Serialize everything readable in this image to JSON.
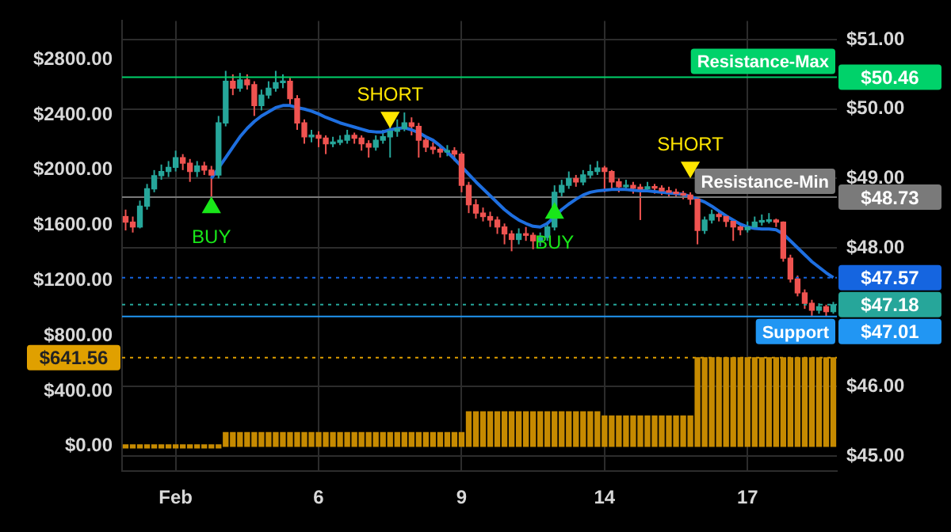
{
  "chart_data": {
    "type": "candlestick",
    "categories": [
      null,
      null,
      null,
      null,
      null,
      null,
      null,
      "Feb",
      null,
      null,
      null,
      null,
      null,
      null,
      null,
      null,
      null,
      null,
      null,
      null,
      null,
      null,
      null,
      null,
      null,
      null,
      null,
      "6",
      null,
      null,
      null,
      null,
      null,
      null,
      null,
      null,
      null,
      null,
      null,
      null,
      null,
      null,
      null,
      null,
      null,
      null,
      null,
      "9",
      null,
      null,
      null,
      null,
      null,
      null,
      null,
      null,
      null,
      null,
      null,
      null,
      null,
      null,
      null,
      null,
      null,
      null,
      null,
      "14",
      null,
      null,
      null,
      null,
      null,
      null,
      null,
      null,
      null,
      null,
      null,
      null,
      null,
      null,
      null,
      null,
      null,
      null,
      null,
      "17",
      null,
      null,
      null,
      null,
      null,
      null,
      null,
      null,
      null,
      null,
      null,
      null
    ],
    "series": [
      {
        "axis": "y2",
        "ohlc": [
          [
            48.45,
            48.55,
            48.25,
            48.37
          ],
          [
            48.37,
            48.45,
            48.22,
            48.3
          ],
          [
            48.3,
            48.68,
            48.28,
            48.6
          ],
          [
            48.6,
            48.92,
            48.55,
            48.85
          ],
          [
            48.85,
            49.12,
            48.8,
            49.04
          ],
          [
            49.04,
            49.2,
            48.98,
            49.1
          ],
          [
            49.1,
            49.25,
            49.02,
            49.16
          ],
          [
            49.16,
            49.4,
            49.1,
            49.3
          ],
          [
            49.3,
            49.35,
            49.12,
            49.22
          ],
          [
            49.22,
            49.28,
            48.95,
            49.1
          ],
          [
            49.1,
            49.25,
            49.02,
            49.18
          ],
          [
            49.18,
            49.24,
            49.05,
            49.12
          ],
          [
            49.12,
            49.18,
            48.7,
            49.05
          ],
          [
            49.05,
            49.9,
            49.0,
            49.8
          ],
          [
            49.8,
            50.55,
            49.75,
            50.4
          ],
          [
            50.4,
            50.5,
            50.2,
            50.3
          ],
          [
            50.3,
            50.52,
            50.25,
            50.42
          ],
          [
            50.42,
            50.5,
            50.28,
            50.35
          ],
          [
            50.35,
            50.4,
            49.9,
            50.05
          ],
          [
            50.05,
            50.28,
            49.98,
            50.2
          ],
          [
            50.2,
            50.4,
            50.15,
            50.3
          ],
          [
            50.3,
            50.55,
            50.25,
            50.38
          ],
          [
            50.38,
            50.5,
            50.3,
            50.4
          ],
          [
            50.4,
            50.45,
            50.05,
            50.15
          ],
          [
            50.15,
            50.2,
            49.7,
            49.8
          ],
          [
            49.8,
            49.85,
            49.5,
            49.6
          ],
          [
            49.6,
            49.7,
            49.52,
            49.62
          ],
          [
            49.62,
            49.68,
            49.45,
            49.58
          ],
          [
            49.58,
            49.62,
            49.35,
            49.5
          ],
          [
            49.5,
            49.6,
            49.45,
            49.52
          ],
          [
            49.52,
            49.62,
            49.48,
            49.55
          ],
          [
            49.55,
            49.7,
            49.5,
            49.62
          ],
          [
            49.62,
            49.66,
            49.5,
            49.58
          ],
          [
            49.58,
            49.62,
            49.4,
            49.5
          ],
          [
            49.5,
            49.55,
            49.3,
            49.45
          ],
          [
            49.45,
            49.62,
            49.4,
            49.55
          ],
          [
            49.55,
            49.7,
            49.5,
            49.6
          ],
          [
            49.6,
            49.75,
            49.3,
            49.68
          ],
          [
            49.68,
            49.85,
            49.6,
            49.72
          ],
          [
            49.72,
            49.95,
            49.68,
            49.8
          ],
          [
            49.8,
            49.88,
            49.62,
            49.75
          ],
          [
            49.75,
            49.8,
            49.3,
            49.55
          ],
          [
            49.55,
            49.6,
            49.38,
            49.45
          ],
          [
            49.45,
            49.52,
            49.35,
            49.42
          ],
          [
            49.42,
            49.48,
            49.3,
            49.38
          ],
          [
            49.38,
            49.48,
            49.32,
            49.4
          ],
          [
            49.4,
            49.45,
            49.25,
            49.35
          ],
          [
            49.35,
            49.38,
            48.8,
            48.9
          ],
          [
            48.9,
            48.95,
            48.5,
            48.62
          ],
          [
            48.62,
            48.7,
            48.42,
            48.5
          ],
          [
            48.5,
            48.58,
            48.38,
            48.45
          ],
          [
            48.45,
            48.52,
            48.3,
            48.4
          ],
          [
            48.4,
            48.45,
            48.2,
            48.3
          ],
          [
            48.3,
            48.35,
            48.05,
            48.2
          ],
          [
            48.2,
            48.25,
            47.95,
            48.12
          ],
          [
            48.12,
            48.28,
            48.05,
            48.2
          ],
          [
            48.2,
            48.3,
            48.1,
            48.18
          ],
          [
            48.18,
            48.22,
            47.98,
            48.1
          ],
          [
            48.1,
            48.22,
            48.02,
            48.15
          ],
          [
            48.15,
            48.38,
            48.1,
            48.3
          ],
          [
            48.3,
            48.9,
            48.25,
            48.8
          ],
          [
            48.8,
            48.98,
            48.72,
            48.9
          ],
          [
            48.9,
            49.1,
            48.85,
            49.0
          ],
          [
            49.0,
            49.05,
            48.88,
            48.95
          ],
          [
            48.95,
            49.12,
            48.9,
            49.05
          ],
          [
            49.05,
            49.2,
            49.0,
            49.1
          ],
          [
            49.1,
            49.25,
            49.05,
            49.15
          ],
          [
            49.15,
            49.18,
            48.8,
            49.1
          ],
          [
            49.1,
            49.12,
            48.85,
            48.95
          ],
          [
            48.95,
            49.0,
            48.8,
            48.88
          ],
          [
            48.88,
            48.98,
            48.82,
            48.9
          ],
          [
            48.9,
            48.95,
            48.78,
            48.86
          ],
          [
            48.86,
            48.92,
            48.4,
            48.85
          ],
          [
            48.85,
            48.95,
            48.8,
            48.88
          ],
          [
            48.88,
            48.92,
            48.78,
            48.86
          ],
          [
            48.86,
            48.9,
            48.76,
            48.82
          ],
          [
            48.82,
            48.88,
            48.74,
            48.8
          ],
          [
            48.8,
            48.85,
            48.72,
            48.78
          ],
          [
            48.78,
            48.82,
            48.7,
            48.76
          ],
          [
            48.76,
            48.8,
            48.62,
            48.7
          ],
          [
            48.7,
            48.72,
            48.05,
            48.25
          ],
          [
            48.25,
            48.45,
            48.2,
            48.4
          ],
          [
            48.4,
            48.55,
            48.35,
            48.48
          ],
          [
            48.48,
            48.52,
            48.38,
            48.45
          ],
          [
            48.45,
            48.48,
            48.3,
            48.38
          ],
          [
            48.38,
            48.4,
            48.1,
            48.3
          ],
          [
            48.3,
            48.35,
            48.18,
            48.26
          ],
          [
            48.26,
            48.38,
            48.22,
            48.3
          ],
          [
            48.3,
            48.45,
            48.28,
            48.37
          ],
          [
            48.37,
            48.48,
            48.32,
            48.38
          ],
          [
            48.38,
            48.5,
            48.35,
            48.4
          ],
          [
            48.4,
            48.42,
            48.3,
            48.37
          ],
          [
            48.37,
            48.38,
            47.8,
            47.85
          ],
          [
            47.85,
            47.9,
            47.5,
            47.55
          ],
          [
            47.55,
            47.6,
            47.3,
            47.35
          ],
          [
            47.35,
            47.4,
            47.12,
            47.2
          ],
          [
            47.2,
            47.25,
            47.02,
            47.1
          ],
          [
            47.1,
            47.2,
            47.05,
            47.15
          ],
          [
            47.15,
            47.18,
            47.01,
            47.08
          ],
          [
            47.08,
            47.22,
            47.05,
            47.18
          ]
        ]
      },
      {
        "type": "line",
        "axis": "y2",
        "color": "#1e6fe0",
        "values": [
          null,
          null,
          null,
          null,
          null,
          null,
          null,
          null,
          null,
          null,
          null,
          null,
          49.0,
          49.15,
          49.3,
          49.45,
          49.6,
          49.72,
          49.82,
          49.9,
          49.96,
          50.02,
          50.05,
          50.05,
          50.02,
          50.0,
          49.97,
          49.93,
          49.88,
          49.84,
          49.8,
          49.77,
          49.74,
          49.71,
          49.68,
          49.67,
          49.67,
          49.7,
          49.72,
          49.73,
          49.7,
          49.66,
          49.6,
          49.55,
          49.47,
          49.38,
          49.28,
          49.17,
          49.06,
          48.95,
          48.85,
          48.75,
          48.65,
          48.55,
          48.47,
          48.4,
          48.35,
          48.31,
          48.3,
          48.35,
          48.45,
          48.55,
          48.63,
          48.7,
          48.76,
          48.8,
          48.82,
          48.83,
          48.84,
          48.84,
          48.84,
          48.83,
          48.82,
          48.82,
          48.81,
          48.8,
          48.79,
          48.78,
          48.77,
          48.74,
          48.7,
          48.66,
          48.6,
          48.53,
          48.46,
          48.4,
          48.34,
          48.3,
          48.28,
          48.27,
          48.27,
          48.26,
          48.2,
          48.1,
          48.0,
          47.9,
          47.8,
          47.72,
          47.64,
          47.57
        ]
      },
      {
        "type": "bar",
        "axis": "y",
        "color": "#c68a00",
        "values": [
          0,
          0,
          0,
          0,
          0,
          0,
          0,
          0,
          0,
          0,
          0,
          0,
          0,
          0,
          100,
          100,
          100,
          100,
          100,
          100,
          100,
          100,
          100,
          100,
          100,
          100,
          100,
          100,
          100,
          100,
          100,
          100,
          100,
          100,
          100,
          100,
          100,
          100,
          100,
          100,
          100,
          100,
          100,
          100,
          100,
          100,
          100,
          100,
          250,
          250,
          250,
          250,
          250,
          250,
          250,
          250,
          250,
          250,
          250,
          250,
          250,
          250,
          250,
          250,
          250,
          250,
          250,
          220,
          220,
          220,
          220,
          220,
          220,
          220,
          220,
          220,
          220,
          220,
          220,
          220,
          641.56,
          641.56,
          641.56,
          641.56,
          641.56,
          641.56,
          641.56,
          641.56,
          641.56,
          641.56,
          641.56,
          641.56,
          641.56,
          641.56,
          641.56,
          641.56,
          641.56,
          641.56,
          641.56,
          641.56
        ]
      },
      {
        "type": "scatter",
        "name": "BUY",
        "axis": "y2",
        "color": "#19e619",
        "marker": "triangle",
        "values": [
          null,
          null,
          null,
          null,
          null,
          null,
          null,
          null,
          null,
          null,
          null,
          null,
          48.58,
          null,
          null,
          null,
          null,
          null,
          null,
          null,
          null,
          null,
          null,
          null,
          null,
          null,
          null,
          null,
          null,
          null,
          null,
          null,
          null,
          null,
          null,
          null,
          null,
          null,
          null,
          null,
          null,
          null,
          null,
          null,
          null,
          null,
          null,
          null,
          null,
          null,
          null,
          null,
          null,
          null,
          null,
          null,
          null,
          null,
          null,
          null,
          48.5,
          null,
          null,
          null,
          null,
          null,
          null,
          null,
          null,
          null,
          null,
          null,
          null,
          null,
          null,
          null,
          null,
          null,
          null,
          null,
          null,
          null,
          null,
          null,
          null,
          null,
          null,
          null,
          null,
          null,
          null,
          null,
          null,
          null,
          null,
          null,
          null,
          null,
          null,
          null
        ]
      },
      {
        "type": "scatter",
        "name": "SHORT",
        "axis": "y2",
        "color": "#ffe600",
        "marker": "triangle",
        "values": [
          null,
          null,
          null,
          null,
          null,
          null,
          null,
          null,
          null,
          null,
          null,
          null,
          null,
          null,
          null,
          null,
          null,
          null,
          null,
          null,
          null,
          null,
          null,
          null,
          null,
          null,
          null,
          null,
          null,
          null,
          null,
          null,
          null,
          null,
          null,
          null,
          null,
          49.88,
          null,
          null,
          null,
          null,
          null,
          null,
          null,
          null,
          null,
          null,
          null,
          null,
          null,
          null,
          null,
          null,
          null,
          null,
          null,
          null,
          null,
          null,
          null,
          null,
          null,
          null,
          null,
          null,
          null,
          null,
          null,
          null,
          null,
          null,
          null,
          null,
          null,
          null,
          null,
          null,
          null,
          49.16,
          null,
          null,
          null,
          null,
          null,
          null,
          null,
          null,
          null,
          null,
          null,
          null,
          null,
          null,
          null,
          null,
          null,
          null,
          null,
          null
        ]
      }
    ],
    "ylim": [
      -180,
      3080
    ],
    "yticks": [
      {
        "value": 0,
        "label": "$0.00"
      },
      {
        "value": 400,
        "label": "$400.00"
      },
      {
        "value": 800,
        "label": "$800.00"
      },
      {
        "value": 1200,
        "label": "$1200.00"
      },
      {
        "value": 1600,
        "label": "$1600.00"
      },
      {
        "value": 2000,
        "label": "$2000.00"
      },
      {
        "value": 2400,
        "label": "$2400.00"
      },
      {
        "value": 2800,
        "label": "$2800.00"
      }
    ],
    "y2lim": [
      44.78,
      51.27
    ],
    "y2ticks": [
      {
        "value": 45,
        "label": "$45.00"
      },
      {
        "value": 46,
        "label": "$46.00"
      },
      {
        "value": 48,
        "label": "$48.00"
      },
      {
        "value": 49,
        "label": "$49.00"
      },
      {
        "value": 50,
        "label": "$50.00"
      },
      {
        "value": 51,
        "label": "$51.00"
      }
    ],
    "ref_lines": [
      {
        "axis": "y2",
        "value": 50.46,
        "label": "Resistance-Max",
        "color": "#00d26a"
      },
      {
        "axis": "y2",
        "value": 48.73,
        "label": "Resistance-Min",
        "color": "#7a7a7a"
      },
      {
        "axis": "y2",
        "value": 47.57,
        "label": null,
        "color": "#1565e0",
        "line_style": "dotted"
      },
      {
        "axis": "y2",
        "value": 47.18,
        "label": null,
        "color": "#26a69a",
        "line_style": "dotted"
      },
      {
        "axis": "y2",
        "value": 47.01,
        "label": "Support",
        "color": "#2196f3"
      },
      {
        "axis": "y",
        "value": 641.56,
        "label": null,
        "color": "#e0a000",
        "line_style": "dotted"
      }
    ],
    "annotations": [
      "$50.46",
      "$48.73",
      "$47.57",
      "$47.18",
      "$47.01",
      "$641.56"
    ],
    "grid": true,
    "legend": false,
    "marker": "none"
  }
}
